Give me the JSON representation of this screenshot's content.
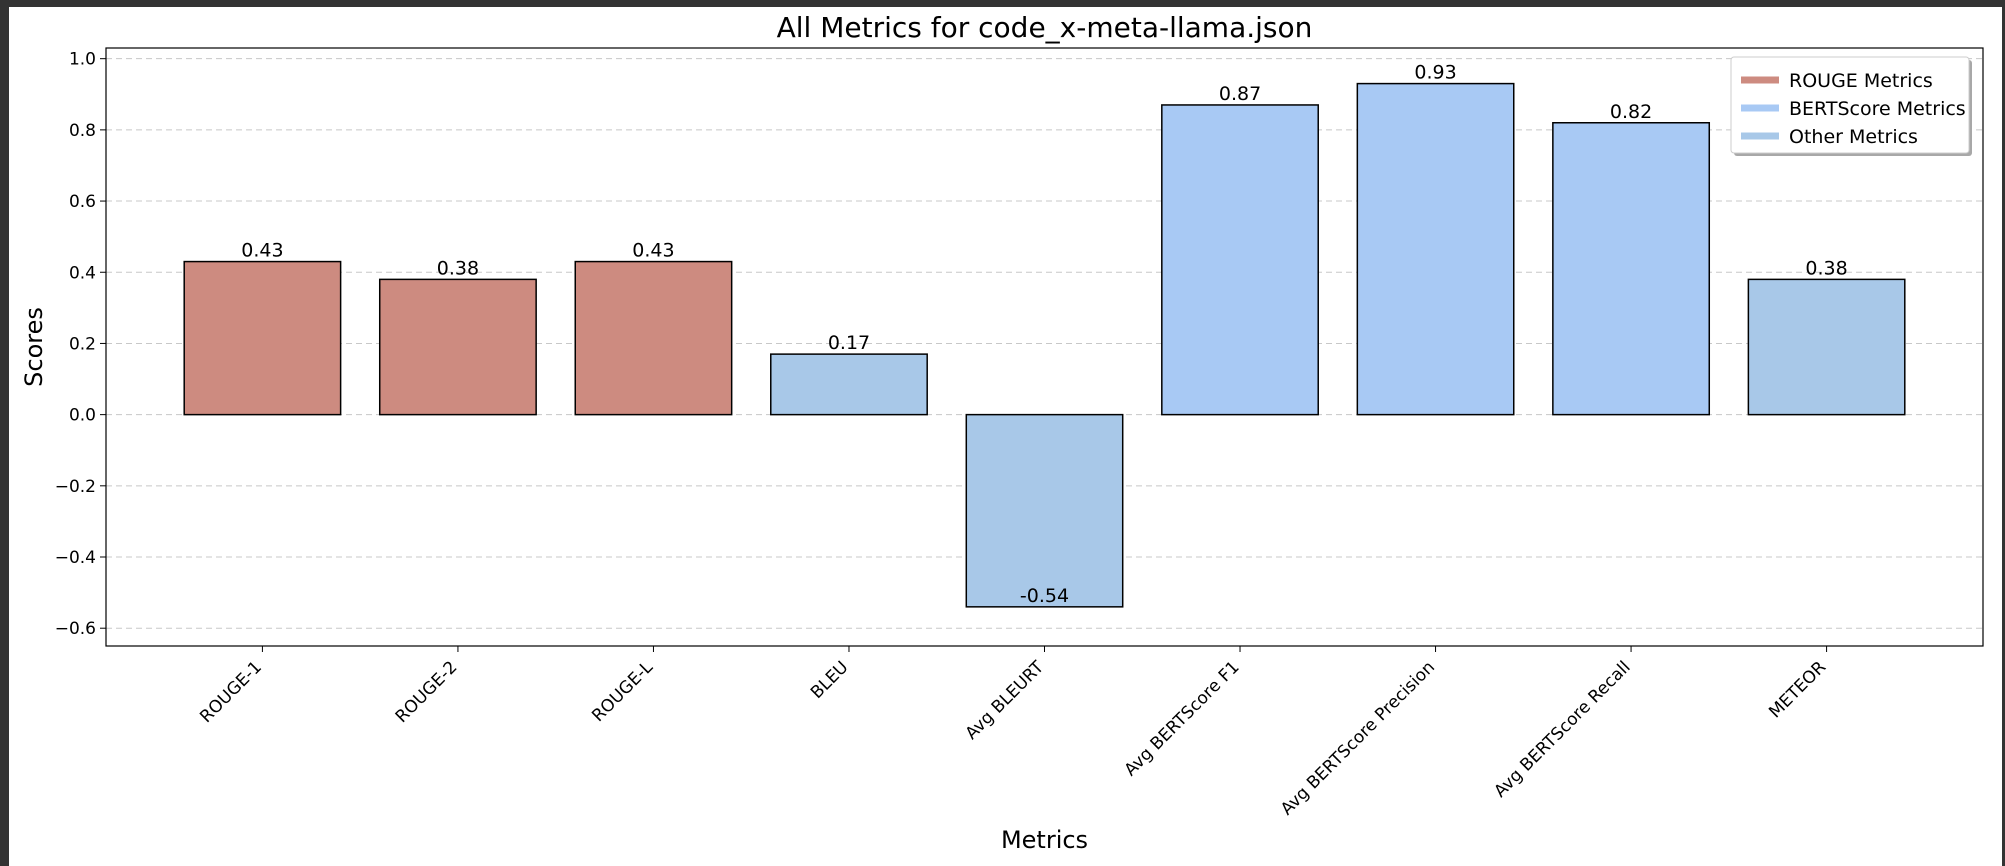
{
  "chart_data": {
    "type": "bar",
    "title": "All Metrics for code_x-meta-llama.json",
    "xlabel": "Metrics",
    "ylabel": "Scores",
    "ylim": [
      -0.65,
      1.03
    ],
    "yticks": [
      -0.6,
      -0.4,
      -0.2,
      0.0,
      0.2,
      0.4,
      0.6,
      0.8,
      1.0
    ],
    "ytick_labels": [
      "−0.6",
      "−0.4",
      "−0.2",
      "0.0",
      "0.2",
      "0.4",
      "0.6",
      "0.8",
      "1.0"
    ],
    "grid": true,
    "legend_position": "top-right",
    "categories": [
      "ROUGE-1",
      "ROUGE-2",
      "ROUGE-L",
      "BLEU",
      "Avg BLEURT",
      "Avg BERTScore F1",
      "Avg BERTScore Precision",
      "Avg BERTScore Recall",
      "METEOR"
    ],
    "values": [
      0.43,
      0.38,
      0.43,
      0.17,
      -0.54,
      0.87,
      0.93,
      0.82,
      0.38
    ],
    "value_labels": [
      "0.43",
      "0.38",
      "0.43",
      "0.17",
      "-0.54",
      "0.87",
      "0.93",
      "0.82",
      "0.38"
    ],
    "groups": [
      "ROUGE Metrics",
      "ROUGE Metrics",
      "ROUGE Metrics",
      "Other Metrics",
      "Other Metrics",
      "BERTScore Metrics",
      "BERTScore Metrics",
      "BERTScore Metrics",
      "Other Metrics"
    ],
    "legend": [
      {
        "name": "ROUGE Metrics",
        "color": "#cd8b80"
      },
      {
        "name": "BERTScore Metrics",
        "color": "#a8c9f4"
      },
      {
        "name": "Other Metrics",
        "color": "#a8c8e8"
      }
    ]
  }
}
